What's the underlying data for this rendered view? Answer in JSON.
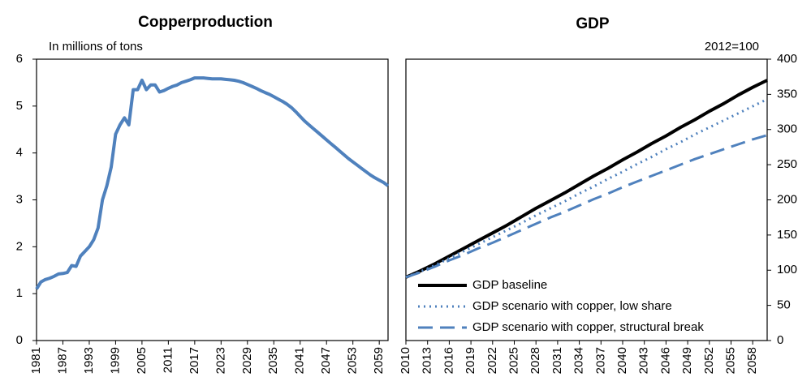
{
  "chart_data": [
    {
      "type": "line",
      "title": "Copperproduction",
      "subtitle": "In millions  of tons",
      "x": [
        1981,
        1982,
        1983,
        1984,
        1985,
        1986,
        1987,
        1988,
        1989,
        1990,
        1991,
        1992,
        1993,
        1994,
        1995,
        1996,
        1997,
        1998,
        1999,
        2000,
        2001,
        2002,
        2003,
        2004,
        2005,
        2006,
        2007,
        2008,
        2009,
        2010,
        2011,
        2012,
        2013,
        2014,
        2015,
        2016,
        2017,
        2018,
        2019,
        2020,
        2021,
        2022,
        2023,
        2024,
        2025,
        2026,
        2027,
        2028,
        2029,
        2030,
        2031,
        2032,
        2033,
        2034,
        2035,
        2036,
        2037,
        2038,
        2039,
        2040,
        2041,
        2042,
        2043,
        2044,
        2045,
        2046,
        2047,
        2048,
        2049,
        2050,
        2051,
        2052,
        2053,
        2054,
        2055,
        2056,
        2057,
        2058,
        2059,
        2060,
        2061
      ],
      "values": [
        1.1,
        1.25,
        1.3,
        1.33,
        1.37,
        1.42,
        1.43,
        1.45,
        1.6,
        1.58,
        1.8,
        1.9,
        2.0,
        2.15,
        2.4,
        3.0,
        3.3,
        3.7,
        4.4,
        4.6,
        4.75,
        4.6,
        5.35,
        5.35,
        5.55,
        5.35,
        5.45,
        5.45,
        5.3,
        5.33,
        5.38,
        5.42,
        5.45,
        5.5,
        5.53,
        5.56,
        5.6,
        5.6,
        5.6,
        5.59,
        5.58,
        5.58,
        5.58,
        5.57,
        5.56,
        5.55,
        5.53,
        5.5,
        5.46,
        5.42,
        5.38,
        5.33,
        5.29,
        5.25,
        5.2,
        5.15,
        5.1,
        5.04,
        4.97,
        4.88,
        4.78,
        4.68,
        4.6,
        4.52,
        4.44,
        4.36,
        4.28,
        4.2,
        4.12,
        4.04,
        3.96,
        3.88,
        3.81,
        3.74,
        3.67,
        3.6,
        3.53,
        3.47,
        3.42,
        3.37,
        3.3
      ],
      "color": "#4f81bd",
      "xlim": [
        1981,
        2061
      ],
      "xticks": [
        1981,
        1987,
        1993,
        1999,
        2005,
        2011,
        2017,
        2023,
        2029,
        2035,
        2041,
        2047,
        2053,
        2059
      ],
      "ylim": [
        0,
        6
      ],
      "yticks": [
        0,
        1,
        2,
        3,
        4,
        5,
        6
      ],
      "yaxis_side": "left"
    },
    {
      "type": "line",
      "title": "GDP",
      "annotation": "2012=100",
      "x": [
        2010,
        2012,
        2014,
        2016,
        2018,
        2020,
        2022,
        2024,
        2026,
        2028,
        2030,
        2032,
        2034,
        2036,
        2038,
        2040,
        2042,
        2044,
        2046,
        2048,
        2050,
        2052,
        2054,
        2056,
        2058,
        2060
      ],
      "series": [
        {
          "name": "GDP baseline",
          "color": "#000000",
          "style": "solid",
          "values": [
            90,
            99,
            109,
            120,
            131,
            142,
            153,
            164,
            176,
            188,
            199,
            210,
            222,
            234,
            245,
            257,
            268,
            280,
            291,
            303,
            314,
            326,
            337,
            349,
            360,
            370
          ]
        },
        {
          "name": "GDP scenario with copper, low share",
          "color": "#4f81bd",
          "style": "dotted",
          "values": [
            90,
            98,
            107,
            117,
            127,
            137,
            147,
            157,
            167,
            178,
            188,
            198,
            209,
            219,
            230,
            240,
            251,
            261,
            272,
            282,
            293,
            303,
            313,
            323,
            333,
            343
          ]
        },
        {
          "name": "GDP scenario with copper, structural break",
          "color": "#4f81bd",
          "style": "dashed",
          "values": [
            90,
            97,
            105,
            114,
            122,
            131,
            139,
            148,
            157,
            166,
            175,
            183,
            192,
            201,
            209,
            218,
            226,
            234,
            242,
            250,
            258,
            265,
            272,
            279,
            286,
            292
          ]
        }
      ],
      "xlim": [
        2010,
        2060
      ],
      "xticks": [
        2010,
        2013,
        2016,
        2019,
        2022,
        2025,
        2028,
        2031,
        2034,
        2037,
        2040,
        2043,
        2046,
        2049,
        2052,
        2055,
        2058
      ],
      "ylim": [
        0,
        400
      ],
      "yticks": [
        0,
        50,
        100,
        150,
        200,
        250,
        300,
        350,
        400
      ],
      "yaxis_side": "right",
      "legend": "lower left"
    }
  ]
}
